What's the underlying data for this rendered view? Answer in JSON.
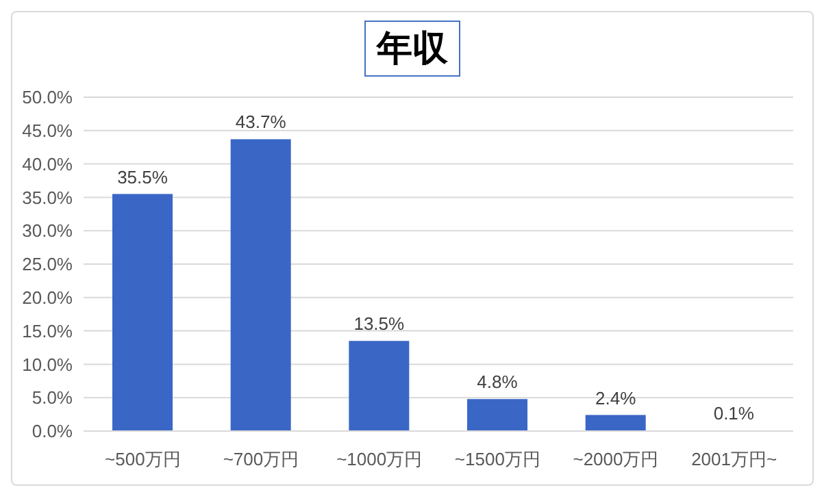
{
  "chart_data": {
    "type": "bar",
    "title": "年収",
    "categories": [
      "~500万円",
      "~700万円",
      "~1000万円",
      "~1500万円",
      "~2000万円",
      "2001万円~"
    ],
    "values": [
      35.5,
      43.7,
      13.5,
      4.8,
      2.4,
      0.1
    ],
    "value_labels": [
      "35.5%",
      "43.7%",
      "13.5%",
      "4.8%",
      "2.4%",
      "0.1%"
    ],
    "color": "#3a66c6",
    "ylim": [
      0,
      50
    ],
    "yticks": [
      {
        "value": 0,
        "label": "0.0%"
      },
      {
        "value": 5,
        "label": "5.0%"
      },
      {
        "value": 10,
        "label": "10.0%"
      },
      {
        "value": 15,
        "label": "15.0%"
      },
      {
        "value": 20,
        "label": "20.0%"
      },
      {
        "value": 25,
        "label": "25.0%"
      },
      {
        "value": 30,
        "label": "30.0%"
      },
      {
        "value": 35,
        "label": "35.0%"
      },
      {
        "value": 40,
        "label": "40.0%"
      },
      {
        "value": 45,
        "label": "45.0%"
      },
      {
        "value": 50,
        "label": "50.0%"
      }
    ],
    "grid": "y"
  }
}
